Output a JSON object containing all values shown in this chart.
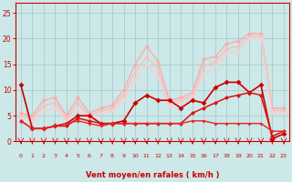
{
  "background_color": "#cce8e8",
  "grid_color": "#aacccc",
  "xlabel": "Vent moyen/en rafales ( km/h )",
  "ylabel_ticks": [
    0,
    5,
    10,
    15,
    20,
    25
  ],
  "x_ticks": [
    0,
    1,
    2,
    3,
    4,
    5,
    6,
    7,
    8,
    9,
    10,
    11,
    12,
    13,
    14,
    15,
    16,
    17,
    18,
    19,
    20,
    21,
    22,
    23
  ],
  "x_range": [
    -0.5,
    23.5
  ],
  "y_range": [
    0,
    27
  ],
  "series": [
    {
      "x": [
        0,
        1,
        2,
        3,
        4,
        5,
        6,
        7,
        8,
        9,
        10,
        11,
        12,
        13,
        14,
        15,
        16,
        17,
        18,
        19,
        20,
        21,
        22,
        23
      ],
      "y": [
        5.5,
        5.0,
        8.0,
        8.5,
        5.0,
        8.5,
        5.5,
        6.5,
        7.0,
        10.0,
        15.0,
        18.5,
        15.5,
        8.0,
        8.5,
        9.5,
        16.0,
        16.5,
        19.0,
        19.5,
        21.0,
        21.0,
        6.5,
        6.5
      ],
      "color": "#ffaaaa",
      "lw": 1.0,
      "marker": "D",
      "ms": 2.5
    },
    {
      "x": [
        0,
        1,
        2,
        3,
        4,
        5,
        6,
        7,
        8,
        9,
        10,
        11,
        12,
        13,
        14,
        15,
        16,
        17,
        18,
        19,
        20,
        21,
        22,
        23
      ],
      "y": [
        5.0,
        4.5,
        7.0,
        7.5,
        4.5,
        7.5,
        5.0,
        6.0,
        6.5,
        9.0,
        13.5,
        16.5,
        14.0,
        7.5,
        8.0,
        9.0,
        14.5,
        15.5,
        18.0,
        18.5,
        20.5,
        20.5,
        6.0,
        6.0
      ],
      "color": "#ffbbbb",
      "lw": 1.0,
      "marker": "D",
      "ms": 2.0
    },
    {
      "x": [
        0,
        1,
        2,
        3,
        4,
        5,
        6,
        7,
        8,
        9,
        10,
        11,
        12,
        13,
        14,
        15,
        16,
        17,
        18,
        19,
        20,
        21,
        22,
        23
      ],
      "y": [
        4.5,
        4.0,
        6.0,
        6.5,
        4.0,
        6.5,
        4.5,
        5.5,
        6.0,
        8.0,
        12.0,
        15.0,
        12.5,
        7.0,
        7.5,
        8.5,
        13.0,
        14.5,
        17.0,
        17.5,
        20.0,
        20.0,
        5.5,
        5.5
      ],
      "color": "#ffcccc",
      "lw": 1.0,
      "marker": "D",
      "ms": 2.0
    },
    {
      "x": [
        0,
        1,
        2,
        3,
        4,
        5,
        6,
        7,
        8,
        9,
        10,
        11,
        12,
        13,
        14,
        15,
        16,
        17,
        18,
        19,
        20,
        21,
        22,
        23
      ],
      "y": [
        11.0,
        2.5,
        2.5,
        3.0,
        3.5,
        5.0,
        5.0,
        3.5,
        3.5,
        4.0,
        7.5,
        9.0,
        8.0,
        8.0,
        6.5,
        8.0,
        7.5,
        10.5,
        11.5,
        11.5,
        9.5,
        11.0,
        0.5,
        1.5
      ],
      "color": "#cc0000",
      "lw": 1.2,
      "marker": "D",
      "ms": 3.0
    },
    {
      "x": [
        0,
        1,
        2,
        3,
        4,
        5,
        6,
        7,
        8,
        9,
        10,
        11,
        12,
        13,
        14,
        15,
        16,
        17,
        18,
        19,
        20,
        21,
        22,
        23
      ],
      "y": [
        4.0,
        2.5,
        2.5,
        3.0,
        3.0,
        4.5,
        4.0,
        3.5,
        3.5,
        3.5,
        3.5,
        3.5,
        3.5,
        3.5,
        3.5,
        5.5,
        6.5,
        7.5,
        8.5,
        9.0,
        9.5,
        9.0,
        1.0,
        2.0
      ],
      "color": "#dd1111",
      "lw": 1.1,
      "marker": "D",
      "ms": 2.5
    },
    {
      "x": [
        0,
        1,
        2,
        3,
        4,
        5,
        6,
        7,
        8,
        9,
        10,
        11,
        12,
        13,
        14,
        15,
        16,
        17,
        18,
        19,
        20,
        21,
        22,
        23
      ],
      "y": [
        4.0,
        2.5,
        2.5,
        3.0,
        3.5,
        4.0,
        3.5,
        3.0,
        3.5,
        3.5,
        3.5,
        3.5,
        3.5,
        3.5,
        3.5,
        4.0,
        4.0,
        3.5,
        3.5,
        3.5,
        3.5,
        3.5,
        2.0,
        2.0
      ],
      "color": "#ee2222",
      "lw": 1.0,
      "marker": "D",
      "ms": 2.0
    }
  ],
  "arrow_color": "#cc0000",
  "xlabel_color": "#cc0000",
  "tick_color": "#cc0000",
  "axis_color": "#cc0000"
}
